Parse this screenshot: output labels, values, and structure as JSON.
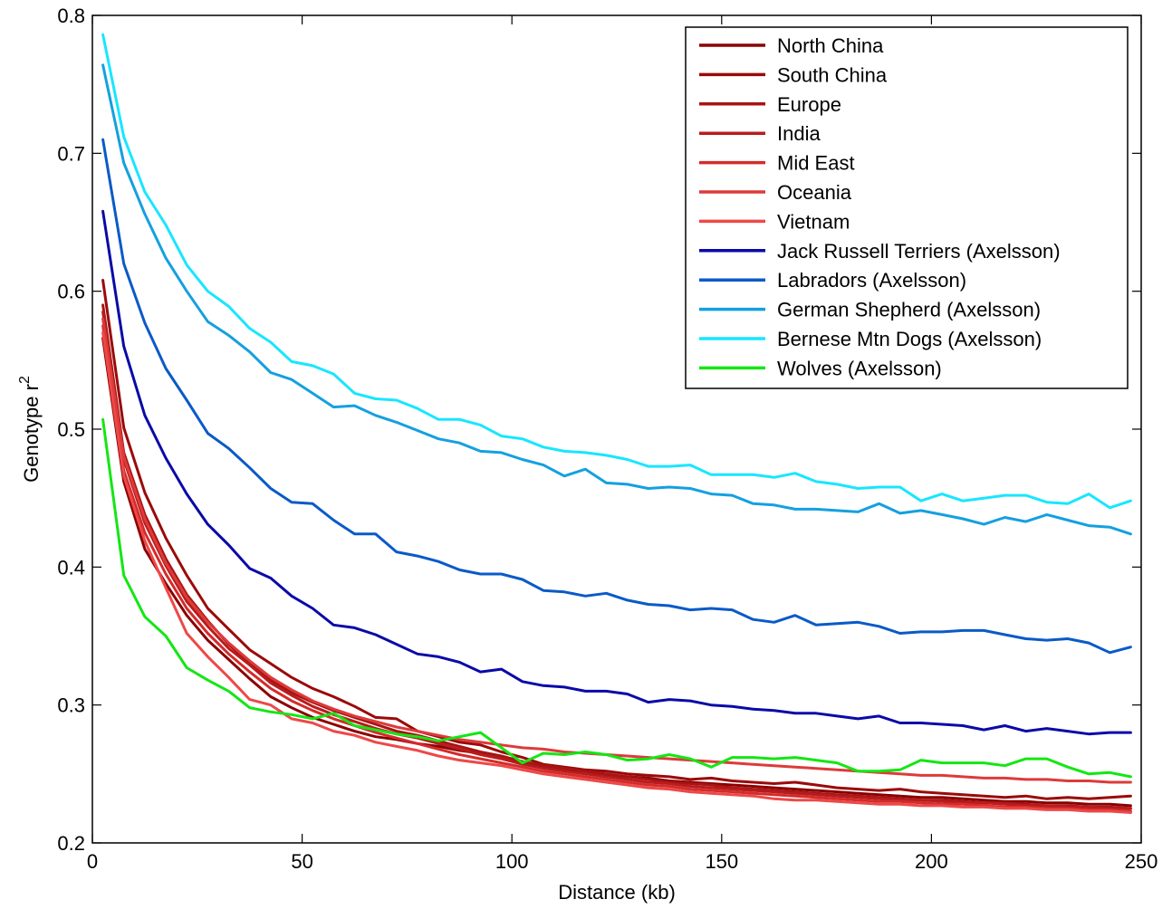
{
  "chart_data": {
    "type": "line",
    "title": "",
    "xlabel": "Distance (kb)",
    "ylabel": "Genotype r",
    "ylabel_superscript": "2",
    "xlim": [
      0,
      250
    ],
    "ylim": [
      0.2,
      0.8
    ],
    "xticks": [
      0,
      50,
      100,
      150,
      200,
      250
    ],
    "xtick_labels": [
      "0",
      "50",
      "100",
      "150",
      "200",
      "250"
    ],
    "yticks": [
      0.2,
      0.3,
      0.4,
      0.5,
      0.6,
      0.7,
      0.8
    ],
    "ytick_labels": [
      "0.2",
      "0.3",
      "0.4",
      "0.5",
      "0.6",
      "0.7",
      "0.8"
    ],
    "grid": false,
    "legend_position": "top-right",
    "x": [
      2.5,
      7.5,
      12.5,
      17.5,
      22.5,
      27.5,
      32.5,
      37.5,
      42.5,
      47.5,
      52.5,
      57.5,
      62.5,
      67.5,
      72.5,
      77.5,
      82.5,
      87.5,
      92.5,
      97.5,
      102.5,
      107.5,
      112.5,
      117.5,
      122.5,
      127.5,
      132.5,
      137.5,
      142.5,
      147.5,
      152.5,
      157.5,
      162.5,
      167.5,
      172.5,
      177.5,
      182.5,
      187.5,
      192.5,
      197.5,
      202.5,
      207.5,
      212.5,
      217.5,
      222.5,
      227.5,
      232.5,
      237.5,
      242.5,
      247.5
    ],
    "series": [
      {
        "name": "North China",
        "color": "#8b0000",
        "values": [
          0.566,
          0.462,
          0.413,
          0.388,
          0.365,
          0.347,
          0.333,
          0.319,
          0.306,
          0.298,
          0.291,
          0.286,
          0.281,
          0.277,
          0.275,
          0.272,
          0.27,
          0.267,
          0.265,
          0.262,
          0.258,
          0.255,
          0.253,
          0.25,
          0.249,
          0.248,
          0.247,
          0.245,
          0.244,
          0.243,
          0.242,
          0.241,
          0.24,
          0.239,
          0.238,
          0.237,
          0.236,
          0.235,
          0.234,
          0.233,
          0.233,
          0.232,
          0.231,
          0.23,
          0.23,
          0.229,
          0.229,
          0.228,
          0.228,
          0.227
        ]
      },
      {
        "name": "South China",
        "color": "#9a0a0a",
        "values": [
          0.608,
          0.501,
          0.454,
          0.421,
          0.394,
          0.37,
          0.355,
          0.34,
          0.33,
          0.32,
          0.312,
          0.306,
          0.299,
          0.291,
          0.29,
          0.281,
          0.277,
          0.273,
          0.271,
          0.266,
          0.262,
          0.257,
          0.255,
          0.253,
          0.252,
          0.25,
          0.249,
          0.248,
          0.246,
          0.247,
          0.245,
          0.244,
          0.243,
          0.244,
          0.242,
          0.24,
          0.239,
          0.238,
          0.239,
          0.237,
          0.236,
          0.235,
          0.234,
          0.233,
          0.234,
          0.232,
          0.233,
          0.232,
          0.233,
          0.234
        ]
      },
      {
        "name": "Europe",
        "color": "#a81414",
        "values": [
          0.59,
          0.483,
          0.438,
          0.406,
          0.38,
          0.361,
          0.344,
          0.33,
          0.318,
          0.309,
          0.302,
          0.296,
          0.291,
          0.286,
          0.281,
          0.278,
          0.274,
          0.27,
          0.266,
          0.263,
          0.259,
          0.256,
          0.254,
          0.252,
          0.25,
          0.248,
          0.246,
          0.244,
          0.243,
          0.242,
          0.24,
          0.239,
          0.238,
          0.237,
          0.236,
          0.235,
          0.234,
          0.233,
          0.232,
          0.231,
          0.231,
          0.23,
          0.229,
          0.229,
          0.228,
          0.227,
          0.227,
          0.226,
          0.226,
          0.225
        ]
      },
      {
        "name": "India",
        "color": "#b81c1c",
        "values": [
          0.585,
          0.478,
          0.432,
          0.401,
          0.375,
          0.357,
          0.341,
          0.329,
          0.316,
          0.307,
          0.299,
          0.293,
          0.288,
          0.283,
          0.279,
          0.276,
          0.272,
          0.268,
          0.264,
          0.261,
          0.257,
          0.254,
          0.252,
          0.25,
          0.248,
          0.246,
          0.244,
          0.243,
          0.241,
          0.24,
          0.239,
          0.238,
          0.237,
          0.236,
          0.235,
          0.234,
          0.233,
          0.232,
          0.231,
          0.231,
          0.23,
          0.229,
          0.229,
          0.228,
          0.227,
          0.227,
          0.226,
          0.226,
          0.225,
          0.225
        ]
      },
      {
        "name": "Mid East",
        "color": "#d42b2b",
        "values": [
          0.575,
          0.47,
          0.425,
          0.395,
          0.37,
          0.352,
          0.337,
          0.324,
          0.312,
          0.303,
          0.296,
          0.29,
          0.285,
          0.28,
          0.276,
          0.272,
          0.268,
          0.264,
          0.261,
          0.258,
          0.255,
          0.252,
          0.25,
          0.248,
          0.246,
          0.244,
          0.242,
          0.241,
          0.239,
          0.238,
          0.237,
          0.236,
          0.235,
          0.234,
          0.233,
          0.232,
          0.231,
          0.23,
          0.23,
          0.229,
          0.228,
          0.228,
          0.227,
          0.226,
          0.226,
          0.225,
          0.225,
          0.224,
          0.224,
          0.223
        ]
      },
      {
        "name": "Oceania",
        "color": "#de3a3a",
        "values": [
          0.58,
          0.48,
          0.435,
          0.403,
          0.378,
          0.36,
          0.345,
          0.332,
          0.32,
          0.311,
          0.303,
          0.297,
          0.292,
          0.288,
          0.284,
          0.281,
          0.278,
          0.275,
          0.273,
          0.271,
          0.269,
          0.268,
          0.266,
          0.265,
          0.264,
          0.263,
          0.262,
          0.261,
          0.26,
          0.259,
          0.258,
          0.257,
          0.256,
          0.255,
          0.254,
          0.253,
          0.252,
          0.251,
          0.25,
          0.249,
          0.249,
          0.248,
          0.247,
          0.247,
          0.246,
          0.246,
          0.245,
          0.245,
          0.244,
          0.244
        ]
      },
      {
        "name": "Vietnam",
        "color": "#ee4848",
        "values": [
          0.57,
          0.466,
          0.419,
          0.385,
          0.352,
          0.335,
          0.32,
          0.304,
          0.3,
          0.29,
          0.287,
          0.281,
          0.278,
          0.273,
          0.27,
          0.267,
          0.263,
          0.26,
          0.258,
          0.256,
          0.253,
          0.25,
          0.248,
          0.246,
          0.244,
          0.242,
          0.24,
          0.239,
          0.237,
          0.236,
          0.235,
          0.234,
          0.232,
          0.231,
          0.231,
          0.23,
          0.229,
          0.228,
          0.228,
          0.227,
          0.227,
          0.226,
          0.226,
          0.225,
          0.225,
          0.224,
          0.224,
          0.223,
          0.223,
          0.222
        ]
      },
      {
        "name": "Jack Russell Terriers (Axelsson)",
        "color": "#0a0aa8",
        "values": [
          0.658,
          0.56,
          0.51,
          0.479,
          0.453,
          0.431,
          0.416,
          0.399,
          0.392,
          0.379,
          0.37,
          0.358,
          0.356,
          0.351,
          0.344,
          0.337,
          0.335,
          0.331,
          0.324,
          0.326,
          0.317,
          0.314,
          0.313,
          0.31,
          0.31,
          0.308,
          0.302,
          0.304,
          0.303,
          0.3,
          0.299,
          0.297,
          0.296,
          0.294,
          0.294,
          0.292,
          0.29,
          0.292,
          0.287,
          0.287,
          0.286,
          0.285,
          0.282,
          0.285,
          0.281,
          0.283,
          0.281,
          0.279,
          0.28,
          0.28
        ]
      },
      {
        "name": "Labradors (Axelsson)",
        "color": "#0a5ac8",
        "values": [
          0.71,
          0.62,
          0.577,
          0.544,
          0.521,
          0.497,
          0.486,
          0.472,
          0.457,
          0.447,
          0.446,
          0.434,
          0.424,
          0.424,
          0.411,
          0.408,
          0.404,
          0.398,
          0.395,
          0.395,
          0.391,
          0.383,
          0.382,
          0.379,
          0.381,
          0.376,
          0.373,
          0.372,
          0.369,
          0.37,
          0.369,
          0.362,
          0.36,
          0.365,
          0.358,
          0.359,
          0.36,
          0.357,
          0.352,
          0.353,
          0.353,
          0.354,
          0.354,
          0.351,
          0.348,
          0.347,
          0.348,
          0.345,
          0.338,
          0.342
        ]
      },
      {
        "name": "German Shepherd (Axelsson)",
        "color": "#14a0e0",
        "values": [
          0.764,
          0.693,
          0.656,
          0.624,
          0.6,
          0.578,
          0.568,
          0.556,
          0.541,
          0.536,
          0.526,
          0.516,
          0.517,
          0.51,
          0.505,
          0.499,
          0.493,
          0.49,
          0.484,
          0.483,
          0.478,
          0.474,
          0.466,
          0.471,
          0.461,
          0.46,
          0.457,
          0.458,
          0.457,
          0.453,
          0.452,
          0.446,
          0.445,
          0.442,
          0.442,
          0.441,
          0.44,
          0.446,
          0.439,
          0.441,
          0.438,
          0.435,
          0.431,
          0.436,
          0.433,
          0.438,
          0.434,
          0.43,
          0.429,
          0.424
        ]
      },
      {
        "name": "Bernese Mtn Dogs (Axelsson)",
        "color": "#18e6ff",
        "values": [
          0.786,
          0.712,
          0.672,
          0.648,
          0.619,
          0.6,
          0.589,
          0.573,
          0.563,
          0.549,
          0.546,
          0.54,
          0.526,
          0.522,
          0.521,
          0.515,
          0.507,
          0.507,
          0.503,
          0.495,
          0.493,
          0.487,
          0.484,
          0.483,
          0.481,
          0.478,
          0.473,
          0.473,
          0.474,
          0.467,
          0.467,
          0.467,
          0.465,
          0.468,
          0.462,
          0.46,
          0.457,
          0.458,
          0.458,
          0.448,
          0.453,
          0.448,
          0.45,
          0.452,
          0.452,
          0.447,
          0.446,
          0.453,
          0.443,
          0.448
        ]
      },
      {
        "name": "Wolves (Axelsson)",
        "color": "#14e614",
        "values": [
          0.507,
          0.394,
          0.364,
          0.35,
          0.327,
          0.318,
          0.31,
          0.298,
          0.295,
          0.293,
          0.29,
          0.294,
          0.285,
          0.282,
          0.279,
          0.277,
          0.274,
          0.277,
          0.28,
          0.269,
          0.258,
          0.265,
          0.264,
          0.266,
          0.264,
          0.26,
          0.261,
          0.264,
          0.261,
          0.255,
          0.262,
          0.262,
          0.261,
          0.262,
          0.26,
          0.258,
          0.252,
          0.252,
          0.253,
          0.26,
          0.258,
          0.258,
          0.258,
          0.256,
          0.261,
          0.261,
          0.255,
          0.25,
          0.251,
          0.248
        ]
      }
    ]
  }
}
